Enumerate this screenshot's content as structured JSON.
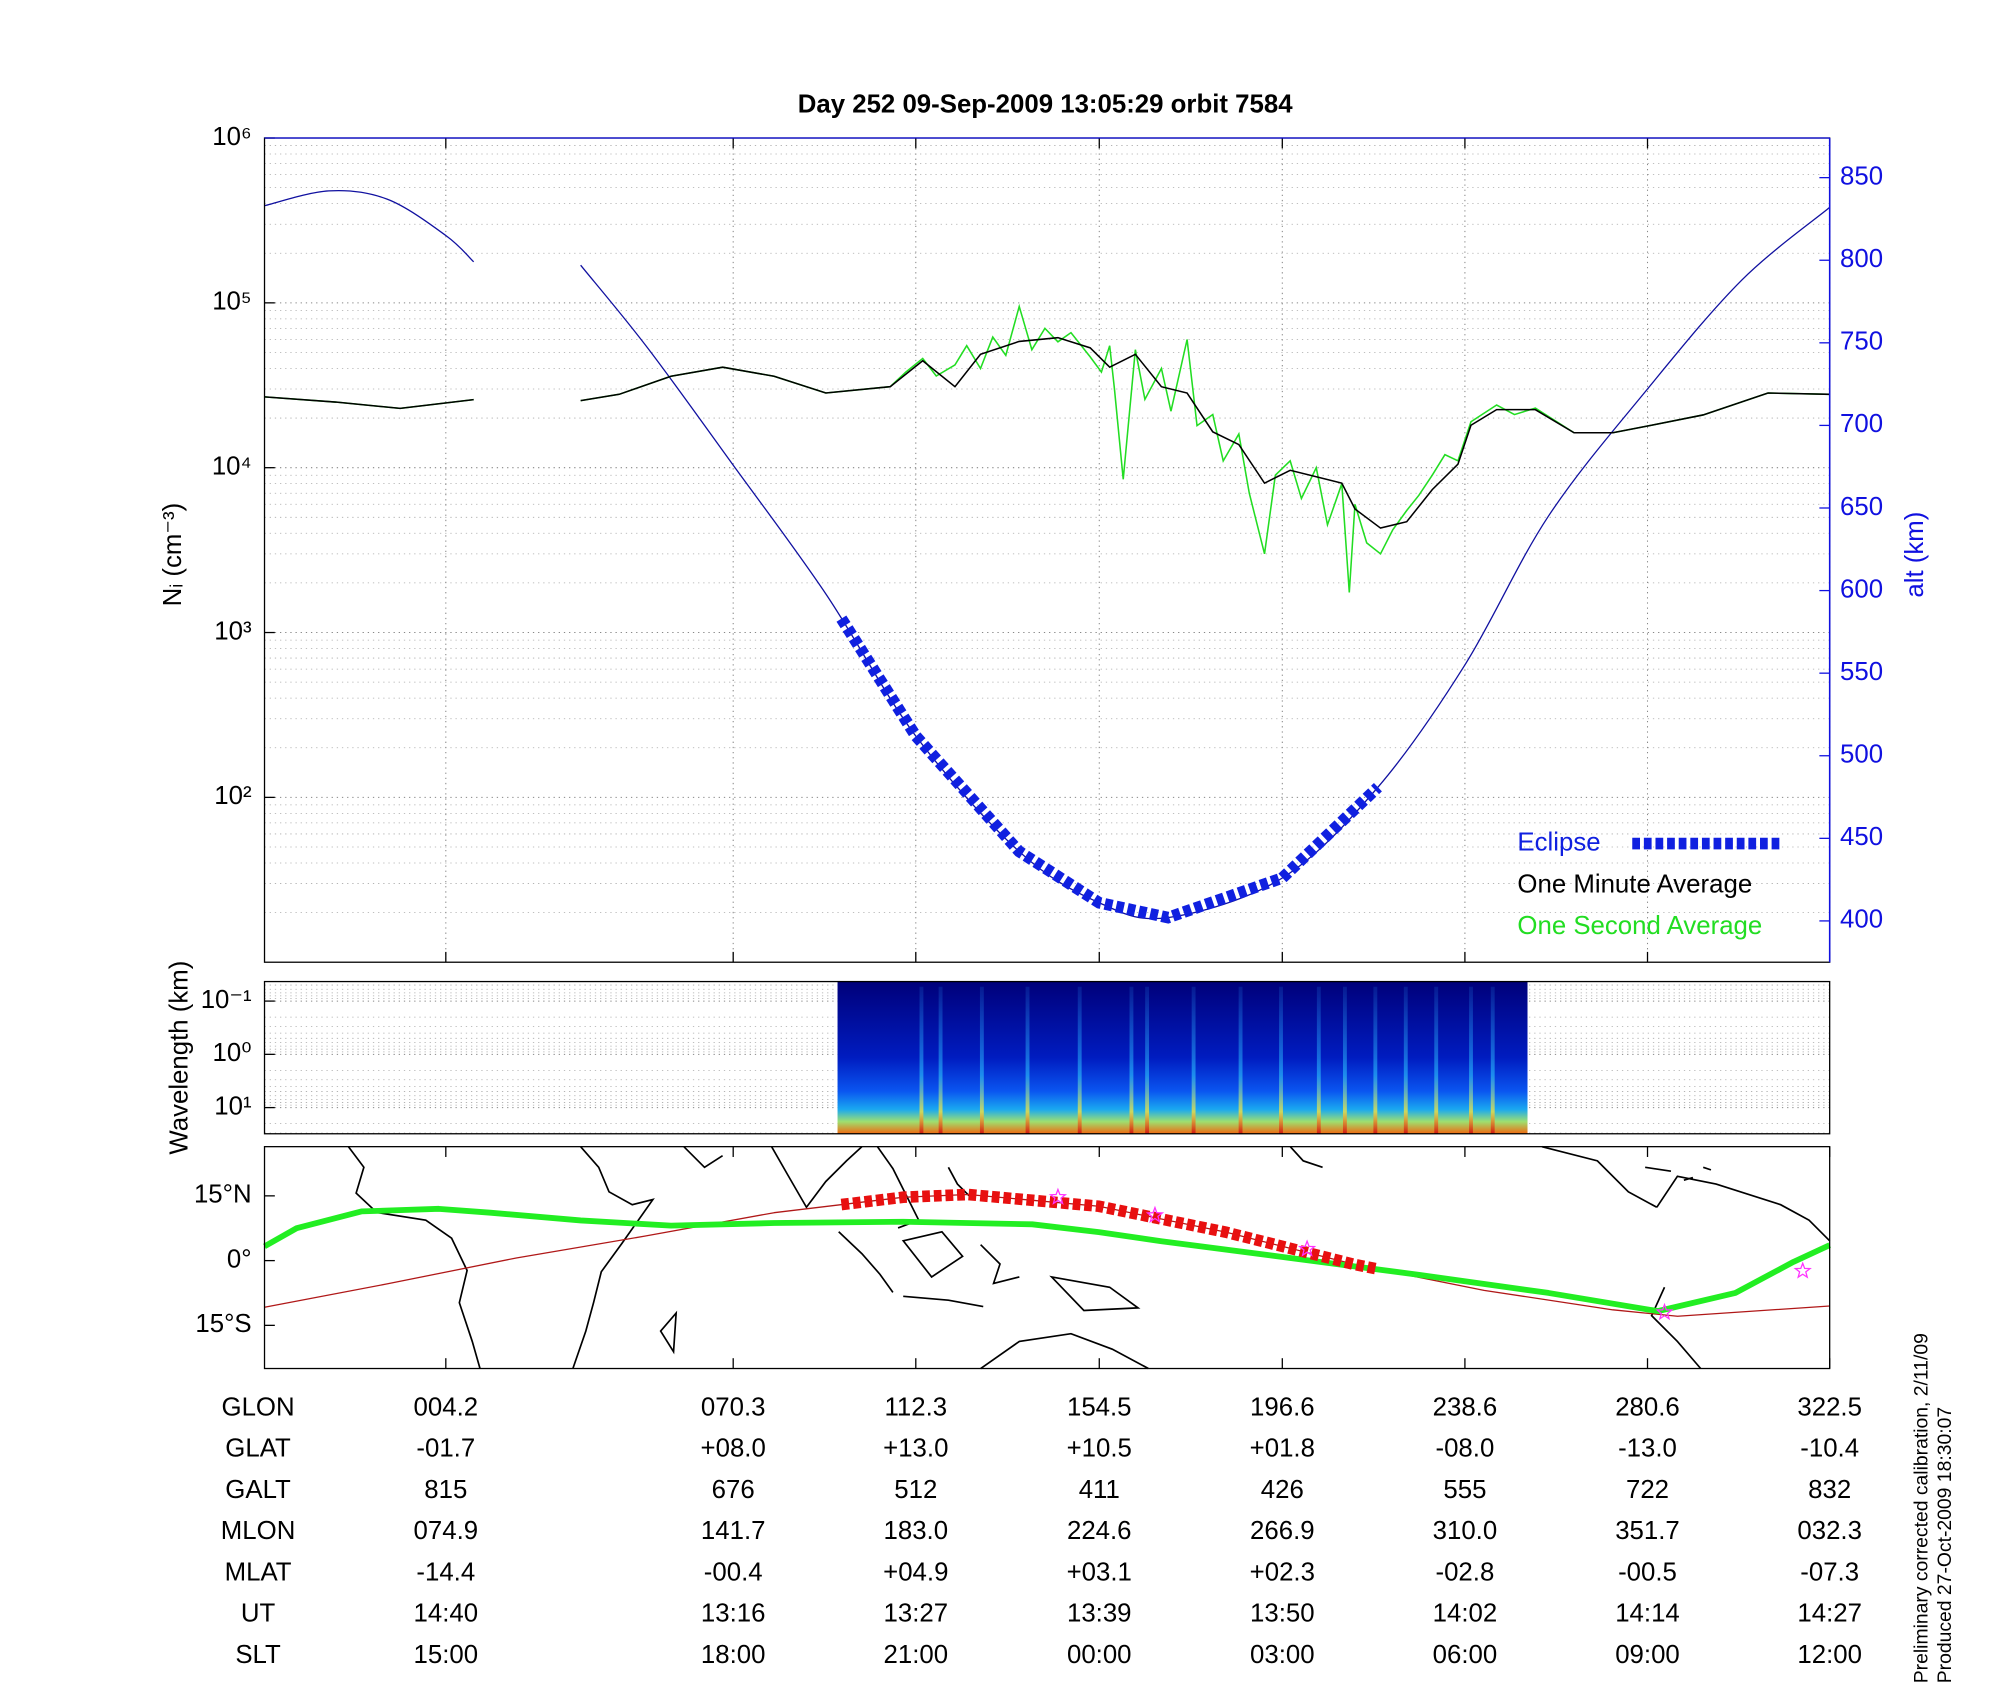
{
  "chart_data": [
    {
      "type": "line",
      "title": "Day 252  09-Sep-2009 13:05:29   orbit 7584",
      "ylabel": "Nᵢ (cm⁻³)",
      "y2label": "alt (km)",
      "xlim": [
        -37.5,
        322.5
      ],
      "xticks": [
        4.2,
        70.3,
        112.3,
        154.5,
        196.6,
        238.6,
        280.6,
        322.5
      ],
      "ylim": [
        10,
        1000000
      ],
      "log_y": true,
      "yticks": [
        {
          "value": 100,
          "label": "10²"
        },
        {
          "value": 1000,
          "label": "10³"
        },
        {
          "value": 10000,
          "label": "10⁴"
        },
        {
          "value": 100000,
          "label": "10⁵"
        },
        {
          "value": 1000000,
          "label": "10⁶"
        }
      ],
      "y2lim": [
        375,
        874
      ],
      "y2ticks": [
        400,
        450,
        500,
        550,
        600,
        650,
        700,
        750,
        800,
        850
      ],
      "grid": true,
      "minor_grid": true,
      "legend": "lower right",
      "series": [
        {
          "name": "One Minute Average",
          "color": "#000000",
          "x": [
            -37.5,
            -21.2,
            -6.3,
            10.6,
            20,
            35.2,
            44.1,
            56.0,
            67.9,
            79.7,
            91.6,
            106.4,
            113.9,
            121.3,
            127.2,
            136.1,
            145.0,
            152.4,
            156.9,
            162.8,
            168.8,
            174.7,
            180.6,
            186.6,
            192.5,
            198.4,
            204.4,
            210.3,
            213.3,
            219.2,
            225.2,
            231.1,
            237.0,
            240.0,
            245.9,
            254.8,
            263.7,
            272.6,
            281.5,
            293.4,
            308.3,
            322.5
          ],
          "values": [
            26900,
            25000,
            22900,
            25900,
            null,
            25500,
            27900,
            35900,
            40700,
            35900,
            28400,
            31000,
            44500,
            31000,
            48700,
            58300,
            61500,
            53300,
            40700,
            48700,
            31000,
            28400,
            16500,
            13800,
            8060,
            9640,
            8810,
            8060,
            5620,
            4300,
            4700,
            7360,
            10500,
            18100,
            22500,
            22500,
            16300,
            16300,
            18100,
            20900,
            28400,
            27900
          ]
        },
        {
          "name": "One Second Average",
          "color": "#22dd22",
          "x": [
            -37.5,
            -21.2,
            -6.3,
            10.6,
            20,
            35.2,
            44.1,
            56.0,
            67.9,
            79.7,
            91.6,
            106.4,
            110,
            113.9,
            117,
            121.3,
            124,
            127.2,
            130,
            133,
            136.1,
            139,
            142,
            145.0,
            148,
            152.4,
            155,
            156.9,
            158,
            160,
            162.8,
            165,
            168.8,
            171,
            174.7,
            177,
            180.6,
            183,
            186.6,
            189,
            192.5,
            195,
            198.4,
            201,
            204.4,
            207,
            210.3,
            212,
            213.3,
            216,
            219.2,
            222,
            225.2,
            228,
            231.1,
            234,
            237.0,
            240.0,
            245.9,
            250,
            254.8,
            263.7,
            272.6,
            281.5,
            293.4,
            308.3,
            322.5
          ],
          "values": [
            26900,
            25000,
            22900,
            25900,
            null,
            25500,
            27900,
            35900,
            40700,
            35900,
            28400,
            31000,
            38000,
            46000,
            36000,
            42000,
            55000,
            40000,
            62000,
            48000,
            95000,
            52000,
            70000,
            58000,
            66000,
            47000,
            38000,
            55000,
            30000,
            8500,
            52000,
            26000,
            40000,
            22000,
            60000,
            18000,
            21000,
            11000,
            16000,
            7000,
            3000,
            9000,
            11000,
            6500,
            10000,
            4500,
            8000,
            1750,
            6000,
            3500,
            3000,
            4200,
            5500,
            6800,
            9000,
            12000,
            11000,
            19000,
            24000,
            21000,
            23000,
            16300,
            16300,
            18100,
            20900,
            28400,
            27900
          ]
        },
        {
          "color": "#1010a0",
          "axis": "y2",
          "x": [
            -37.5,
            -22.7,
            -9.3,
            4.2,
            10.6,
            20,
            35.2,
            50.6,
            70.3,
            91.6,
            112.3,
            136.1,
            154.5,
            170.3,
            196.6,
            218.6,
            238.6,
            257.8,
            280.6,
            302.3,
            322.5
          ],
          "values": [
            833,
            842,
            837,
            815,
            799,
            null,
            797,
            747,
            676,
            598,
            512,
            442,
            411,
            402,
            426,
            481,
            555,
            645,
            722,
            788,
            832
          ]
        }
      ],
      "eclipse": {
        "name": "Eclipse",
        "color": "#1020e0",
        "x": [
          95.2,
          218.6
        ]
      }
    },
    {
      "type": "spectrogram",
      "ylabel": "Wavelength (km)",
      "xlim": [
        -37.5,
        322.5
      ],
      "ylim": [
        0.043,
        31
      ],
      "log_y": true,
      "y_inverted": true,
      "yticks": [
        {
          "value": 0.1,
          "label": "10⁻¹"
        },
        {
          "value": 1,
          "label": "10⁰"
        },
        {
          "value": 10,
          "label": "10¹"
        }
      ],
      "grid": true,
      "minor_grid": true,
      "x": [
        94.3,
        253.0
      ],
      "bursts": [
        113.6,
        118.0,
        127.5,
        138.0,
        150.0,
        161.9,
        165.5,
        176.2,
        187.0,
        196.3,
        205.0,
        211.0,
        218.0,
        225.0,
        232.0,
        240.0,
        245.0
      ]
    },
    {
      "type": "map",
      "xlim": [
        -37.5,
        322.5
      ],
      "xticks": [
        4.2,
        70.3,
        112.3,
        154.5,
        196.6,
        238.6,
        280.6,
        322.5
      ],
      "ylim": [
        -25,
        26.4
      ],
      "yticks": [
        {
          "value": 15,
          "label": "15°N"
        },
        {
          "value": 0,
          "label": "0°"
        },
        {
          "value": -15,
          "label": "15°S"
        }
      ],
      "eclipse_color": "#e81010",
      "series": [
        {
          "color": "#b01818",
          "x": [
            -37.5,
            -9.3,
            20.4,
            50.1,
            79.7,
            109.4,
            124.3,
            154.4,
            183.6,
            213.3,
            243.0,
            272.6,
            287.5,
            322.5
          ],
          "values": [
            -10.8,
            -5.4,
            0.6,
            5.7,
            11.1,
            14.7,
            15.3,
            12.6,
            6.6,
            -0.9,
            -6.9,
            -11.4,
            -12.9,
            -10.5
          ]
        },
        {
          "color": "#22ee22",
          "x": [
            -37.5,
            -30.1,
            -15.2,
            2.6,
            14.4,
            35.2,
            56.0,
            79.7,
            109.4,
            139.1,
            154.4,
            168.8,
            198.4,
            228.1,
            257.8,
            283.0,
            300.8,
            314.2,
            322.5
          ],
          "values": [
            3.3,
            7.5,
            11.4,
            12.0,
            11.1,
            9.3,
            8.1,
            8.7,
            9.0,
            8.4,
            6.6,
            4.5,
            0.6,
            -3.3,
            -7.5,
            -11.7,
            -7.5,
            -0.3,
            3.6
          ]
        }
      ],
      "markers": {
        "color": "#ff33ff",
        "x": [
          145.0,
          167.3,
          202.3,
          284.5,
          316.3
        ],
        "values": [
          14.7,
          10.5,
          2.7,
          -12.0,
          -2.4
        ]
      }
    }
  ],
  "table": {
    "rows": [
      {
        "label": "GLON",
        "values": [
          "004.2",
          "070.3",
          "112.3",
          "154.5",
          "196.6",
          "238.6",
          "280.6",
          "322.5"
        ]
      },
      {
        "label": "GLAT",
        "values": [
          "-01.7",
          "+08.0",
          "+13.0",
          "+10.5",
          "+01.8",
          "-08.0",
          "-13.0",
          "-10.4"
        ]
      },
      {
        "label": "GALT",
        "values": [
          "815",
          "676",
          "512",
          "411",
          "426",
          "555",
          "722",
          "832"
        ]
      },
      {
        "label": "MLON",
        "values": [
          "074.9",
          "141.7",
          "183.0",
          "224.6",
          "266.9",
          "310.0",
          "351.7",
          "032.3"
        ]
      },
      {
        "label": "MLAT",
        "values": [
          "-14.4",
          "-00.4",
          "+04.9",
          "+03.1",
          "+02.3",
          "-02.8",
          "-00.5",
          "-07.3"
        ]
      },
      {
        "label": "UT",
        "values": [
          "14:40",
          "13:16",
          "13:27",
          "13:39",
          "13:50",
          "14:02",
          "14:14",
          "14:27"
        ]
      },
      {
        "label": "SLT",
        "values": [
          "15:00",
          "18:00",
          "21:00",
          "00:00",
          "03:00",
          "06:00",
          "09:00",
          "12:00"
        ]
      }
    ]
  },
  "footnotes": [
    "Preliminary corrected calibration, 2/11/09",
    "Produced 27-Oct-2009 18:30:07"
  ]
}
